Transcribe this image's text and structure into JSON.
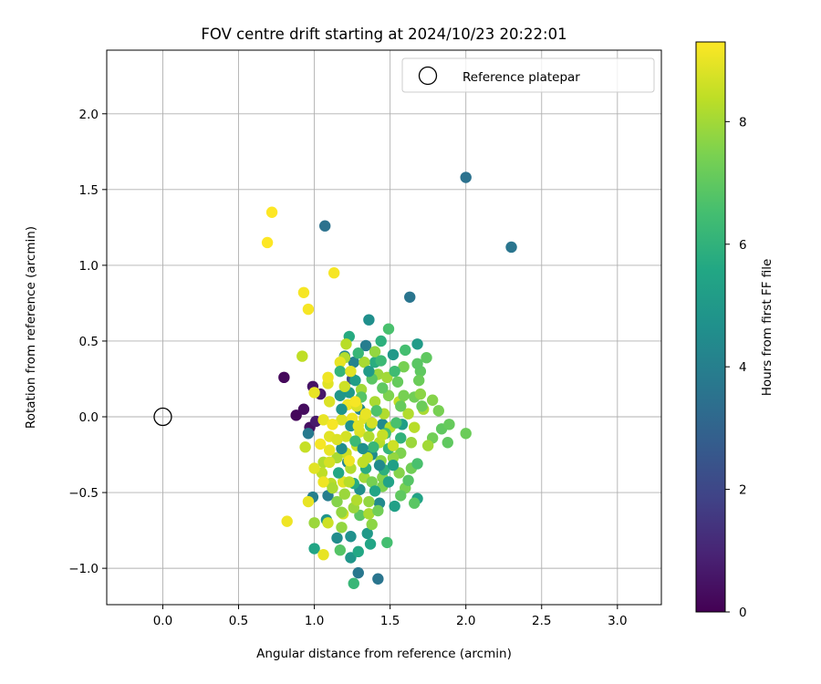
{
  "chart_data": {
    "type": "scatter",
    "title": "FOV centre drift starting at 2024/10/23 20:22:01",
    "xlabel": "Angular distance from reference (arcmin)",
    "ylabel": "Rotation from reference (arcmin)",
    "xlim": [
      -0.37,
      3.29
    ],
    "ylim": [
      -1.24,
      2.42
    ],
    "xticks": [
      0.0,
      0.5,
      1.0,
      1.5,
      2.0,
      2.5,
      3.0
    ],
    "xtick_labels": [
      "0.0",
      "0.5",
      "1.0",
      "1.5",
      "2.0",
      "2.5",
      "3.0"
    ],
    "yticks": [
      -1.0,
      -0.5,
      0.0,
      0.5,
      1.0,
      1.5,
      2.0
    ],
    "ytick_labels": [
      "−1.0",
      "−0.5",
      "0.0",
      "0.5",
      "1.0",
      "1.5",
      "2.0"
    ],
    "grid": true,
    "legend": {
      "position": "top-right",
      "entries": [
        {
          "label": "Reference platepar",
          "marker": "open-circle"
        }
      ]
    },
    "reference_point": {
      "x": 0.0,
      "y": 0.0
    },
    "colorbar": {
      "label": "Hours from first FF file",
      "range": [
        0,
        9.3
      ],
      "ticks": [
        0,
        2,
        4,
        6,
        8
      ],
      "tick_labels": [
        "0",
        "2",
        "4",
        "6",
        "8"
      ],
      "colormap": "viridis"
    },
    "points": [
      {
        "x": 0.8,
        "y": 0.26,
        "c": 0.2
      },
      {
        "x": 0.88,
        "y": 0.01,
        "c": 0.2
      },
      {
        "x": 0.93,
        "y": 0.05,
        "c": 0.3
      },
      {
        "x": 0.99,
        "y": 0.2,
        "c": 0.5
      },
      {
        "x": 1.04,
        "y": 0.15,
        "c": 0.6
      },
      {
        "x": 0.97,
        "y": -0.07,
        "c": 0.4
      },
      {
        "x": 1.01,
        "y": -0.03,
        "c": 0.7
      },
      {
        "x": 1.25,
        "y": 0.25,
        "c": 2.2
      },
      {
        "x": 1.07,
        "y": 1.26,
        "c": 3.5
      },
      {
        "x": 1.63,
        "y": 0.79,
        "c": 3.6
      },
      {
        "x": 2.0,
        "y": 1.58,
        "c": 3.5
      },
      {
        "x": 2.3,
        "y": 1.12,
        "c": 3.6
      },
      {
        "x": 1.42,
        "y": -1.07,
        "c": 3.6
      },
      {
        "x": 1.29,
        "y": -1.03,
        "c": 3.7
      },
      {
        "x": 0.96,
        "y": -0.11,
        "c": 3.8
      },
      {
        "x": 1.09,
        "y": -0.52,
        "c": 3.9
      },
      {
        "x": 0.99,
        "y": -0.53,
        "c": 4.0
      },
      {
        "x": 1.34,
        "y": 0.47,
        "c": 3.9
      },
      {
        "x": 1.26,
        "y": 0.36,
        "c": 4.1
      },
      {
        "x": 1.2,
        "y": 0.4,
        "c": 4.2
      },
      {
        "x": 1.36,
        "y": 0.64,
        "c": 4.6
      },
      {
        "x": 1.3,
        "y": 0.05,
        "c": 4.3
      },
      {
        "x": 1.45,
        "y": -0.05,
        "c": 4.4
      },
      {
        "x": 1.38,
        "y": -0.25,
        "c": 4.5
      },
      {
        "x": 1.22,
        "y": -0.3,
        "c": 4.3
      },
      {
        "x": 1.3,
        "y": -0.48,
        "c": 4.6
      },
      {
        "x": 1.24,
        "y": -0.79,
        "c": 4.7
      },
      {
        "x": 1.08,
        "y": -0.68,
        "c": 4.8
      },
      {
        "x": 1.15,
        "y": -0.8,
        "c": 4.5
      },
      {
        "x": 1.24,
        "y": -0.93,
        "c": 4.9
      },
      {
        "x": 1.43,
        "y": -0.57,
        "c": 4.4
      },
      {
        "x": 1.35,
        "y": -0.77,
        "c": 5.0
      },
      {
        "x": 1.52,
        "y": 0.41,
        "c": 5.0
      },
      {
        "x": 1.68,
        "y": 0.48,
        "c": 5.1
      },
      {
        "x": 1.58,
        "y": -0.05,
        "c": 5.2
      },
      {
        "x": 1.53,
        "y": -0.59,
        "c": 5.3
      },
      {
        "x": 1.68,
        "y": -0.54,
        "c": 5.4
      },
      {
        "x": 1.37,
        "y": -0.84,
        "c": 5.5
      },
      {
        "x": 1.0,
        "y": -0.87,
        "c": 5.5
      },
      {
        "x": 1.29,
        "y": -0.89,
        "c": 5.6
      },
      {
        "x": 1.23,
        "y": 0.53,
        "c": 5.7
      },
      {
        "x": 1.4,
        "y": 0.36,
        "c": 5.8
      },
      {
        "x": 1.44,
        "y": 0.5,
        "c": 5.9
      },
      {
        "x": 1.49,
        "y": 0.58,
        "c": 6.6
      },
      {
        "x": 1.26,
        "y": -1.1,
        "c": 6.2
      },
      {
        "x": 1.48,
        "y": -0.83,
        "c": 6.5
      },
      {
        "x": 1.17,
        "y": -0.88,
        "c": 6.8
      },
      {
        "x": 1.3,
        "y": -0.65,
        "c": 6.9
      },
      {
        "x": 1.66,
        "y": -0.57,
        "c": 6.9
      },
      {
        "x": 1.7,
        "y": 0.3,
        "c": 7.0
      },
      {
        "x": 1.74,
        "y": 0.39,
        "c": 7.0
      },
      {
        "x": 1.68,
        "y": 0.35,
        "c": 6.9
      },
      {
        "x": 1.55,
        "y": 0.23,
        "c": 7.1
      },
      {
        "x": 1.69,
        "y": 0.24,
        "c": 7.2
      },
      {
        "x": 1.84,
        "y": -0.08,
        "c": 7.0
      },
      {
        "x": 1.89,
        "y": -0.05,
        "c": 7.1
      },
      {
        "x": 2.0,
        "y": -0.11,
        "c": 7.2
      },
      {
        "x": 1.88,
        "y": -0.17,
        "c": 7.0
      },
      {
        "x": 1.78,
        "y": -0.14,
        "c": 7.3
      },
      {
        "x": 1.82,
        "y": 0.04,
        "c": 7.4
      },
      {
        "x": 1.64,
        "y": -0.34,
        "c": 7.3
      },
      {
        "x": 1.57,
        "y": -0.24,
        "c": 7.5
      },
      {
        "x": 1.6,
        "y": -0.47,
        "c": 7.4
      },
      {
        "x": 1.45,
        "y": -0.4,
        "c": 7.6
      },
      {
        "x": 1.38,
        "y": -0.71,
        "c": 7.7
      },
      {
        "x": 1.18,
        "y": -0.73,
        "c": 7.8
      },
      {
        "x": 1.0,
        "y": -0.7,
        "c": 7.9
      },
      {
        "x": 1.15,
        "y": -0.56,
        "c": 7.6
      },
      {
        "x": 1.4,
        "y": 0.43,
        "c": 7.8
      },
      {
        "x": 1.42,
        "y": 0.28,
        "c": 7.9
      },
      {
        "x": 1.48,
        "y": 0.26,
        "c": 8.0
      },
      {
        "x": 1.33,
        "y": 0.36,
        "c": 8.1
      },
      {
        "x": 1.2,
        "y": 0.39,
        "c": 8.2
      },
      {
        "x": 1.21,
        "y": 0.48,
        "c": 8.3
      },
      {
        "x": 1.06,
        "y": -0.3,
        "c": 8.2
      },
      {
        "x": 1.11,
        "y": -0.44,
        "c": 8.3
      },
      {
        "x": 1.05,
        "y": -0.37,
        "c": 8.4
      },
      {
        "x": 0.94,
        "y": -0.2,
        "c": 8.5
      },
      {
        "x": 0.92,
        "y": 0.4,
        "c": 8.4
      },
      {
        "x": 1.09,
        "y": -0.7,
        "c": 8.6
      },
      {
        "x": 1.19,
        "y": -0.64,
        "c": 8.7
      },
      {
        "x": 1.13,
        "y": 0.95,
        "c": 9.2
      },
      {
        "x": 0.93,
        "y": 0.82,
        "c": 9.2
      },
      {
        "x": 0.96,
        "y": 0.71,
        "c": 9.2
      },
      {
        "x": 0.72,
        "y": 1.35,
        "c": 9.3
      },
      {
        "x": 0.69,
        "y": 1.15,
        "c": 9.3
      },
      {
        "x": 0.82,
        "y": -0.69,
        "c": 9.1
      },
      {
        "x": 0.96,
        "y": -0.56,
        "c": 9.0
      },
      {
        "x": 1.06,
        "y": -0.91,
        "c": 9.0
      },
      {
        "x": 1.06,
        "y": -0.43,
        "c": 9.1
      },
      {
        "x": 1.19,
        "y": -0.43,
        "c": 8.9
      },
      {
        "x": 1.0,
        "y": -0.34,
        "c": 8.9
      },
      {
        "x": 1.17,
        "y": 0.36,
        "c": 9.0
      },
      {
        "x": 1.09,
        "y": 0.22,
        "c": 8.9
      },
      {
        "x": 1.09,
        "y": 0.26,
        "c": 9.1
      },
      {
        "x": 1.0,
        "y": 0.16,
        "c": 9.0
      },
      {
        "x": 1.22,
        "y": 0.08,
        "c": 9.1
      },
      {
        "x": 1.1,
        "y": 0.1,
        "c": 8.8
      },
      {
        "x": 1.33,
        "y": -0.01,
        "c": 8.9
      },
      {
        "x": 1.28,
        "y": 0.07,
        "c": 8.8
      },
      {
        "x": 1.34,
        "y": 0.02,
        "c": 9.0
      },
      {
        "x": 1.25,
        "y": -0.01,
        "c": 9.1
      },
      {
        "x": 1.18,
        "y": -0.02,
        "c": 8.8
      },
      {
        "x": 1.06,
        "y": -0.02,
        "c": 9.0
      },
      {
        "x": 1.1,
        "y": -0.13,
        "c": 8.9
      },
      {
        "x": 1.21,
        "y": -0.13,
        "c": 8.7
      },
      {
        "x": 1.3,
        "y": -0.1,
        "c": 8.8
      },
      {
        "x": 1.21,
        "y": -0.24,
        "c": 8.6
      },
      {
        "x": 1.28,
        "y": -0.19,
        "c": 8.5
      },
      {
        "x": 1.35,
        "y": -0.27,
        "c": 8.4
      },
      {
        "x": 1.43,
        "y": -0.17,
        "c": 8.3
      },
      {
        "x": 1.36,
        "y": -0.13,
        "c": 8.2
      },
      {
        "x": 1.15,
        "y": -0.27,
        "c": 8.1
      },
      {
        "x": 1.24,
        "y": -0.34,
        "c": 8.2
      },
      {
        "x": 1.33,
        "y": -0.4,
        "c": 8.0
      },
      {
        "x": 1.12,
        "y": -0.47,
        "c": 8.1
      },
      {
        "x": 1.2,
        "y": -0.51,
        "c": 7.9
      },
      {
        "x": 1.36,
        "y": -0.56,
        "c": 7.8
      },
      {
        "x": 1.26,
        "y": -0.6,
        "c": 7.9
      },
      {
        "x": 1.31,
        "y": 0.18,
        "c": 8.0
      },
      {
        "x": 1.4,
        "y": 0.1,
        "c": 8.1
      },
      {
        "x": 1.46,
        "y": 0.02,
        "c": 8.2
      },
      {
        "x": 1.5,
        "y": -0.07,
        "c": 8.3
      },
      {
        "x": 1.56,
        "y": 0.1,
        "c": 8.4
      },
      {
        "x": 1.62,
        "y": 0.02,
        "c": 8.2
      },
      {
        "x": 1.66,
        "y": -0.07,
        "c": 8.3
      },
      {
        "x": 1.72,
        "y": 0.05,
        "c": 8.1
      },
      {
        "x": 1.75,
        "y": -0.19,
        "c": 8.0
      },
      {
        "x": 1.64,
        "y": -0.17,
        "c": 7.9
      },
      {
        "x": 1.52,
        "y": -0.27,
        "c": 7.8
      },
      {
        "x": 1.44,
        "y": -0.29,
        "c": 7.7
      },
      {
        "x": 1.56,
        "y": -0.37,
        "c": 7.6
      },
      {
        "x": 1.45,
        "y": -0.46,
        "c": 7.5
      },
      {
        "x": 1.38,
        "y": -0.43,
        "c": 7.4
      },
      {
        "x": 1.49,
        "y": 0.14,
        "c": 7.5
      },
      {
        "x": 1.59,
        "y": 0.14,
        "c": 7.4
      },
      {
        "x": 1.66,
        "y": 0.13,
        "c": 7.3
      },
      {
        "x": 1.78,
        "y": 0.11,
        "c": 7.6
      },
      {
        "x": 1.71,
        "y": 0.07,
        "c": 7.2
      },
      {
        "x": 1.57,
        "y": 0.07,
        "c": 7.1
      },
      {
        "x": 1.45,
        "y": 0.19,
        "c": 7.0
      },
      {
        "x": 1.38,
        "y": 0.25,
        "c": 6.9
      },
      {
        "x": 1.31,
        "y": 0.13,
        "c": 6.8
      },
      {
        "x": 1.41,
        "y": 0.04,
        "c": 6.7
      },
      {
        "x": 1.54,
        "y": -0.04,
        "c": 6.6
      },
      {
        "x": 1.47,
        "y": -0.11,
        "c": 6.5
      },
      {
        "x": 1.37,
        "y": -0.06,
        "c": 6.4
      },
      {
        "x": 1.27,
        "y": -0.16,
        "c": 6.3
      },
      {
        "x": 1.39,
        "y": -0.2,
        "c": 6.2
      },
      {
        "x": 1.49,
        "y": -0.21,
        "c": 6.1
      },
      {
        "x": 1.57,
        "y": -0.14,
        "c": 6.0
      },
      {
        "x": 1.46,
        "y": -0.35,
        "c": 5.9
      },
      {
        "x": 1.34,
        "y": -0.34,
        "c": 5.8
      },
      {
        "x": 1.26,
        "y": -0.44,
        "c": 5.7
      },
      {
        "x": 1.16,
        "y": -0.37,
        "c": 5.6
      },
      {
        "x": 1.4,
        "y": -0.49,
        "c": 5.5
      },
      {
        "x": 1.49,
        "y": -0.43,
        "c": 5.4
      },
      {
        "x": 1.52,
        "y": -0.32,
        "c": 5.3
      },
      {
        "x": 1.27,
        "y": 0.24,
        "c": 5.2
      },
      {
        "x": 1.36,
        "y": 0.3,
        "c": 5.1
      },
      {
        "x": 1.23,
        "y": 0.16,
        "c": 5.0
      },
      {
        "x": 1.17,
        "y": 0.14,
        "c": 4.9
      },
      {
        "x": 1.18,
        "y": 0.05,
        "c": 4.8
      },
      {
        "x": 1.24,
        "y": -0.06,
        "c": 4.7
      },
      {
        "x": 1.32,
        "y": -0.21,
        "c": 4.6
      },
      {
        "x": 1.18,
        "y": -0.21,
        "c": 4.5
      },
      {
        "x": 1.43,
        "y": -0.32,
        "c": 4.4
      },
      {
        "x": 1.59,
        "y": 0.33,
        "c": 7.4
      },
      {
        "x": 1.7,
        "y": 0.15,
        "c": 7.7
      },
      {
        "x": 1.15,
        "y": -0.15,
        "c": 8.8
      },
      {
        "x": 1.1,
        "y": -0.22,
        "c": 9.0
      },
      {
        "x": 1.04,
        "y": -0.18,
        "c": 9.2
      },
      {
        "x": 1.27,
        "y": 0.1,
        "c": 9.2
      },
      {
        "x": 1.2,
        "y": 0.2,
        "c": 8.6
      },
      {
        "x": 1.38,
        "y": -0.04,
        "c": 8.7
      },
      {
        "x": 1.45,
        "y": -0.12,
        "c": 8.5
      },
      {
        "x": 1.52,
        "y": -0.19,
        "c": 8.6
      },
      {
        "x": 1.32,
        "y": -0.3,
        "c": 8.4
      },
      {
        "x": 1.23,
        "y": -0.43,
        "c": 8.3
      },
      {
        "x": 1.28,
        "y": -0.55,
        "c": 8.2
      },
      {
        "x": 1.36,
        "y": -0.64,
        "c": 8.1
      },
      {
        "x": 1.18,
        "y": -0.63,
        "c": 7.8
      },
      {
        "x": 1.42,
        "y": -0.62,
        "c": 7.3
      },
      {
        "x": 1.57,
        "y": -0.52,
        "c": 7.0
      },
      {
        "x": 1.62,
        "y": -0.42,
        "c": 6.8
      },
      {
        "x": 1.68,
        "y": -0.31,
        "c": 6.6
      },
      {
        "x": 1.6,
        "y": 0.44,
        "c": 6.5
      },
      {
        "x": 1.53,
        "y": 0.3,
        "c": 6.4
      },
      {
        "x": 1.44,
        "y": 0.37,
        "c": 6.3
      },
      {
        "x": 1.29,
        "y": 0.42,
        "c": 6.2
      },
      {
        "x": 1.17,
        "y": 0.3,
        "c": 6.1
      },
      {
        "x": 1.12,
        "y": -0.05,
        "c": 9.2
      },
      {
        "x": 1.24,
        "y": 0.3,
        "c": 8.9
      },
      {
        "x": 1.1,
        "y": -0.3,
        "c": 8.7
      },
      {
        "x": 1.23,
        "y": -0.29,
        "c": 9.1
      },
      {
        "x": 1.29,
        "y": -0.06,
        "c": 8.9
      }
    ]
  }
}
